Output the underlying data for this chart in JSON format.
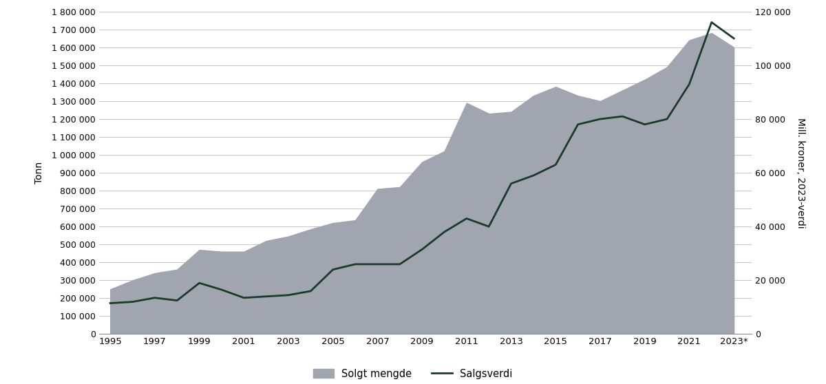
{
  "years": [
    1995,
    1996,
    1997,
    1998,
    1999,
    2000,
    2001,
    2002,
    2003,
    2004,
    2005,
    2006,
    2007,
    2008,
    2009,
    2010,
    2011,
    2012,
    2013,
    2014,
    2015,
    2016,
    2017,
    2018,
    2019,
    2020,
    2021,
    2022,
    2023
  ],
  "solgt_mengde": [
    250000,
    300000,
    340000,
    360000,
    470000,
    460000,
    460000,
    520000,
    545000,
    585000,
    620000,
    635000,
    810000,
    820000,
    960000,
    1020000,
    1290000,
    1230000,
    1240000,
    1330000,
    1380000,
    1330000,
    1300000,
    1360000,
    1420000,
    1490000,
    1640000,
    1680000,
    1600000
  ],
  "salgsverdi": [
    11500,
    12000,
    13500,
    12500,
    19000,
    16500,
    13500,
    14000,
    14500,
    16000,
    24000,
    26000,
    26000,
    26000,
    31500,
    38000,
    43000,
    40000,
    56000,
    59000,
    63000,
    78000,
    80000,
    81000,
    78000,
    80000,
    93000,
    116000,
    110000
  ],
  "area_color": "#a0a5b0",
  "line_color": "#1a3a2a",
  "ylabel_left": "Tonn",
  "ylabel_right": "Mill. kroner, 2023-verdi",
  "ylim_left": [
    0,
    1800000
  ],
  "ylim_right": [
    0,
    120000
  ],
  "yticks_left": [
    0,
    100000,
    200000,
    300000,
    400000,
    500000,
    600000,
    700000,
    800000,
    900000,
    1000000,
    1100000,
    1200000,
    1300000,
    1400000,
    1500000,
    1600000,
    1700000,
    1800000
  ],
  "yticks_right": [
    0,
    20000,
    40000,
    60000,
    80000,
    100000,
    120000
  ],
  "xtick_labels": [
    "1995",
    "1997",
    "1999",
    "2001",
    "2003",
    "2005",
    "2007",
    "2009",
    "2011",
    "2013",
    "2015",
    "2017",
    "2019",
    "2021",
    "2023*"
  ],
  "xtick_positions": [
    1995,
    1997,
    1999,
    2001,
    2003,
    2005,
    2007,
    2009,
    2011,
    2013,
    2015,
    2017,
    2019,
    2021,
    2023
  ],
  "legend_area": "Solgt mengde",
  "legend_line": "Salgsverdi",
  "bg_color": "#ffffff",
  "grid_color": "#bbbbbb",
  "line_width": 2.0,
  "xlim": [
    1994.5,
    2023.8
  ]
}
